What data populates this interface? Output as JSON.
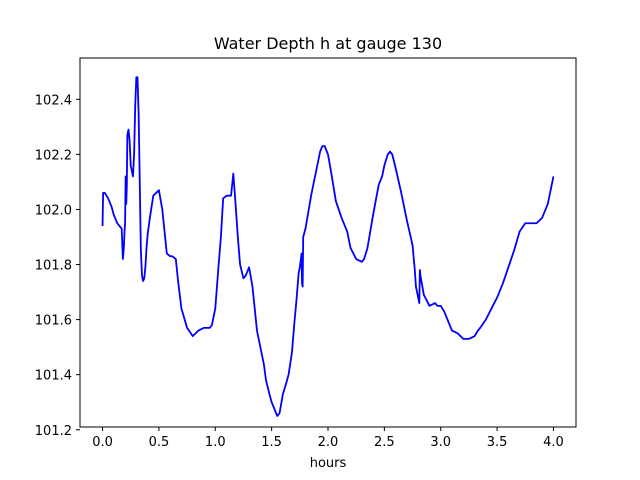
{
  "chart_data": {
    "type": "line",
    "title": "Water Depth h at gauge 130",
    "xlabel": "hours",
    "ylabel": "",
    "xlim": [
      -0.2,
      4.2
    ],
    "ylim": [
      101.21,
      102.55
    ],
    "xticks": [
      0.0,
      0.5,
      1.0,
      1.5,
      2.0,
      2.5,
      3.0,
      3.5,
      4.0
    ],
    "xtick_labels": [
      "0.0",
      "0.5",
      "1.0",
      "1.5",
      "2.0",
      "2.5",
      "3.0",
      "3.5",
      "4.0"
    ],
    "yticks": [
      101.2,
      101.4,
      101.6,
      101.8,
      102.0,
      102.2,
      102.4
    ],
    "ytick_labels": [
      "101.2",
      "101.4",
      "101.6",
      "101.8",
      "102.0",
      "102.2",
      "102.4"
    ],
    "grid": false,
    "color": "#0000ff",
    "series": [
      {
        "x": [
          0.0,
          0.005,
          0.02,
          0.05,
          0.08,
          0.1,
          0.13,
          0.15,
          0.17,
          0.18,
          0.185,
          0.19,
          0.195,
          0.2,
          0.205,
          0.21,
          0.215,
          0.22,
          0.23,
          0.24,
          0.25,
          0.27,
          0.28,
          0.29,
          0.3,
          0.31,
          0.32,
          0.33,
          0.34,
          0.35,
          0.36,
          0.37,
          0.38,
          0.39,
          0.4,
          0.42,
          0.45,
          0.5,
          0.53,
          0.55,
          0.57,
          0.6,
          0.62,
          0.65,
          0.67,
          0.7,
          0.75,
          0.8,
          0.85,
          0.9,
          0.95,
          0.97,
          1.0,
          1.03,
          1.05,
          1.07,
          1.1,
          1.12,
          1.14,
          1.16,
          1.18,
          1.2,
          1.22,
          1.25,
          1.27,
          1.3,
          1.33,
          1.37,
          1.4,
          1.43,
          1.45,
          1.48,
          1.5,
          1.53,
          1.55,
          1.57,
          1.6,
          1.63,
          1.65,
          1.68,
          1.7,
          1.72,
          1.74,
          1.75,
          1.76,
          1.765,
          1.77,
          1.775,
          1.78,
          1.8,
          1.85,
          1.9,
          1.93,
          1.95,
          1.97,
          2.0,
          2.03,
          2.07,
          2.12,
          2.17,
          2.2,
          2.25,
          2.3,
          2.32,
          2.35,
          2.4,
          2.45,
          2.48,
          2.5,
          2.53,
          2.55,
          2.57,
          2.6,
          2.65,
          2.7,
          2.75,
          2.77,
          2.775,
          2.78,
          2.8,
          2.81,
          2.815,
          2.82,
          2.85,
          2.9,
          2.95,
          2.97,
          3.0,
          3.03,
          3.07,
          3.1,
          3.15,
          3.2,
          3.25,
          3.3,
          3.33,
          3.35,
          3.4,
          3.45,
          3.5,
          3.55,
          3.6,
          3.65,
          3.7,
          3.75,
          3.8,
          3.85,
          3.9,
          3.95,
          4.0
        ],
        "y": [
          101.94,
          102.06,
          102.06,
          102.04,
          102.01,
          101.98,
          101.95,
          101.94,
          101.93,
          101.82,
          101.84,
          101.87,
          101.92,
          101.95,
          102.12,
          102.02,
          102.08,
          102.27,
          102.29,
          102.25,
          102.16,
          102.12,
          102.2,
          102.38,
          102.48,
          102.48,
          102.35,
          102.1,
          101.85,
          101.76,
          101.74,
          101.75,
          101.79,
          101.86,
          101.91,
          101.97,
          102.05,
          102.07,
          102.0,
          101.92,
          101.84,
          101.83,
          101.83,
          101.82,
          101.74,
          101.64,
          101.57,
          101.54,
          101.56,
          101.57,
          101.57,
          101.58,
          101.64,
          101.8,
          101.9,
          102.04,
          102.05,
          102.05,
          102.05,
          102.13,
          102.02,
          101.9,
          101.8,
          101.75,
          101.76,
          101.79,
          101.72,
          101.56,
          101.5,
          101.44,
          101.38,
          101.33,
          101.3,
          101.27,
          101.25,
          101.26,
          101.33,
          101.37,
          101.4,
          101.48,
          101.58,
          101.67,
          101.77,
          101.79,
          101.82,
          101.84,
          101.73,
          101.72,
          101.9,
          101.93,
          102.05,
          102.15,
          102.21,
          102.23,
          102.23,
          102.2,
          102.13,
          102.03,
          101.97,
          101.92,
          101.86,
          101.82,
          101.81,
          101.82,
          101.86,
          101.98,
          102.09,
          102.12,
          102.16,
          102.2,
          102.21,
          102.2,
          102.15,
          102.06,
          101.96,
          101.87,
          101.78,
          101.75,
          101.72,
          101.68,
          101.66,
          101.78,
          101.76,
          101.69,
          101.65,
          101.66,
          101.65,
          101.65,
          101.63,
          101.59,
          101.56,
          101.55,
          101.53,
          101.53,
          101.54,
          101.56,
          101.57,
          101.6,
          101.64,
          101.68,
          101.73,
          101.79,
          101.85,
          101.92,
          101.95,
          101.95,
          101.95,
          101.97,
          102.02,
          102.12
        ]
      }
    ]
  }
}
